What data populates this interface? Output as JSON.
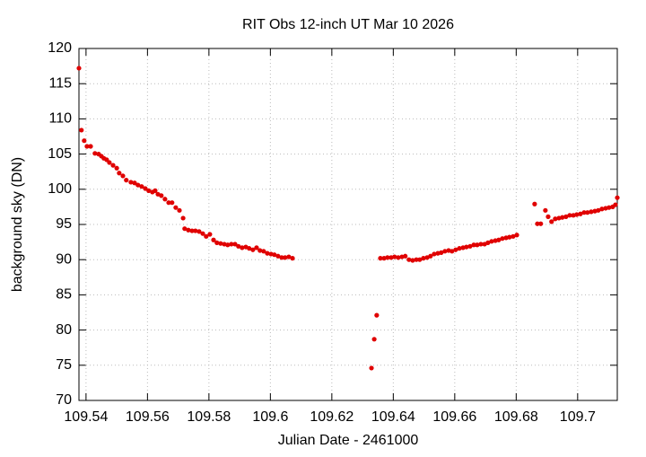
{
  "chart_data": {
    "type": "scatter",
    "title": "RIT Obs 12-inch UT Mar 10 2026",
    "xlabel": "Julian Date - 2461000",
    "ylabel": "background sky (DN)",
    "xlim": [
      109.5377,
      109.7129
    ],
    "ylim": [
      70,
      120
    ],
    "xticks": [
      109.54,
      109.56,
      109.58,
      109.6,
      109.62,
      109.64,
      109.66,
      109.68,
      109.7
    ],
    "yticks": [
      70,
      75,
      80,
      85,
      90,
      95,
      100,
      105,
      110,
      115,
      120
    ],
    "grid": true,
    "color": "#e00000",
    "x": [
      109.5377,
      109.5385,
      109.5394,
      109.5403,
      109.5415,
      109.5429,
      109.5441,
      109.545,
      109.5458,
      109.5467,
      109.5476,
      109.5488,
      109.55,
      109.5508,
      109.552,
      109.5531,
      109.5546,
      109.5558,
      109.5569,
      109.5581,
      109.5593,
      109.5604,
      109.5616,
      109.5625,
      109.5634,
      109.5645,
      109.5657,
      109.5669,
      109.568,
      109.5692,
      109.5704,
      109.5716,
      109.5721,
      109.5733,
      109.5745,
      109.5756,
      109.5768,
      109.578,
      109.5791,
      109.5803,
      109.5815,
      109.5826,
      109.5838,
      109.585,
      109.5861,
      109.5873,
      109.5885,
      109.5896,
      109.5908,
      109.592,
      109.5931,
      109.5943,
      109.5955,
      109.5966,
      109.5978,
      109.599,
      109.6002,
      109.6013,
      109.6025,
      109.6037,
      109.6048,
      109.606,
      109.6072,
      109.6329,
      109.6338,
      109.6346,
      109.6358,
      109.637,
      109.6381,
      109.6393,
      109.6404,
      109.6416,
      109.6428,
      109.6439,
      109.6451,
      109.6463,
      109.6475,
      109.6486,
      109.6498,
      109.651,
      109.6521,
      109.6533,
      109.6545,
      109.6556,
      109.6568,
      109.658,
      109.6591,
      109.6603,
      109.6615,
      109.6627,
      109.6638,
      109.665,
      109.6662,
      109.6673,
      109.6685,
      109.6697,
      109.6708,
      109.672,
      109.6732,
      109.6743,
      109.6755,
      109.6767,
      109.6778,
      109.679,
      109.6802,
      109.686,
      109.6869,
      109.688,
      109.6895,
      109.6904,
      109.6915,
      109.6927,
      109.6939,
      109.695,
      109.6962,
      109.6974,
      109.6986,
      109.6997,
      109.7009,
      109.7021,
      109.7032,
      109.7044,
      109.7056,
      109.7067,
      109.7079,
      109.7091,
      109.7102,
      109.7114,
      109.7123,
      109.7129
    ],
    "values": [
      117.2,
      108.4,
      106.9,
      106.1,
      106.1,
      105.1,
      105.0,
      104.7,
      104.4,
      104.2,
      103.8,
      103.4,
      103.0,
      102.3,
      101.9,
      101.3,
      101.0,
      100.9,
      100.6,
      100.4,
      100.1,
      99.8,
      99.6,
      99.8,
      99.3,
      99.1,
      98.6,
      98.1,
      98.1,
      97.4,
      97.0,
      95.9,
      94.4,
      94.2,
      94.1,
      94.1,
      94.0,
      93.7,
      93.3,
      93.6,
      92.8,
      92.4,
      92.3,
      92.2,
      92.1,
      92.2,
      92.2,
      91.9,
      91.7,
      91.8,
      91.6,
      91.4,
      91.7,
      91.3,
      91.2,
      90.9,
      90.8,
      90.7,
      90.5,
      90.3,
      90.3,
      90.4,
      90.2,
      74.6,
      78.7,
      82.1,
      90.2,
      90.2,
      90.3,
      90.3,
      90.4,
      90.3,
      90.4,
      90.5,
      90.0,
      89.9,
      90.0,
      90.0,
      90.2,
      90.3,
      90.5,
      90.8,
      90.9,
      91.0,
      91.2,
      91.3,
      91.2,
      91.4,
      91.6,
      91.7,
      91.8,
      91.9,
      92.1,
      92.1,
      92.2,
      92.2,
      92.4,
      92.6,
      92.7,
      92.8,
      93.0,
      93.1,
      93.2,
      93.3,
      93.5,
      97.9,
      95.1,
      95.1,
      97.0,
      96.1,
      95.4,
      95.8,
      95.9,
      96.0,
      96.1,
      96.3,
      96.3,
      96.4,
      96.5,
      96.7,
      96.7,
      96.8,
      96.9,
      97.0,
      97.2,
      97.3,
      97.4,
      97.5,
      97.8,
      98.8
    ]
  }
}
